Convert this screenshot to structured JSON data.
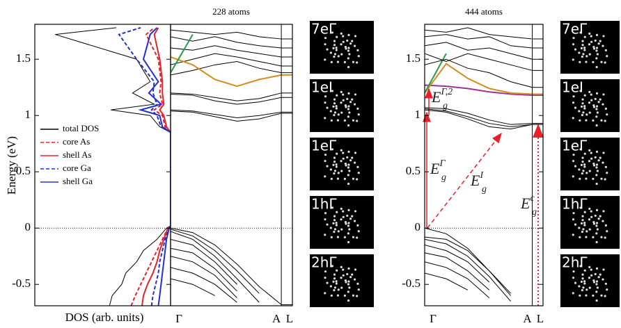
{
  "chart_data": [
    {
      "type": "line",
      "orientation": "horizontal",
      "xlabel": "DOS (arb. units)",
      "ylabel": "Energy (eV)",
      "xlim": [
        10,
        0
      ],
      "ylim": [
        -0.69,
        1.81
      ],
      "yticks": [
        -0.5,
        0,
        0.5,
        1,
        1.5
      ],
      "zero_line": true,
      "legend": "center left",
      "energy": [
        -0.69,
        -0.6,
        -0.5,
        -0.4,
        -0.3,
        -0.2,
        -0.1,
        0,
        0.02,
        0.85,
        0.9,
        1.0,
        1.05,
        1.1,
        1.2,
        1.3,
        1.5,
        1.72,
        1.78
      ],
      "series": [
        {
          "name": "total DOS",
          "color": "#000000",
          "style": "solid",
          "values": [
            4.5,
            4.3,
            3.6,
            3.3,
            2.5,
            2.0,
            1.0,
            0.3,
            0,
            0,
            0.8,
            1.5,
            4.4,
            1.2,
            2.8,
            1.5,
            2.5,
            8.5,
            4
          ]
        },
        {
          "name": "core As",
          "color": "#e8202a",
          "style": "dashed",
          "values": [
            2.9,
            2.6,
            2.2,
            1.8,
            1.4,
            1.0,
            0.6,
            0.2,
            0,
            0,
            0.4,
            0.6,
            1.2,
            0.6,
            0.8,
            0.7,
            0.9,
            1.8,
            1.2
          ]
        },
        {
          "name": "shell As",
          "color": "#e8202a",
          "style": "solid",
          "values": [
            2.1,
            2.0,
            1.7,
            1.3,
            1.0,
            0.8,
            0.5,
            0.2,
            0,
            0,
            0.3,
            0.5,
            0.8,
            0.5,
            0.6,
            0.6,
            0.8,
            1.2,
            0.9
          ]
        },
        {
          "name": "core Ga",
          "color": "#2030d0",
          "style": "dashed",
          "values": [
            1.4,
            1.3,
            1.1,
            0.9,
            0.8,
            0.6,
            0.4,
            0.1,
            0,
            0,
            0.7,
            1.0,
            1.4,
            1.0,
            1.3,
            1.2,
            2.5,
            3.8,
            2.2
          ]
        },
        {
          "name": "shell Ga",
          "color": "#2030d0",
          "style": "solid",
          "values": [
            0.9,
            0.8,
            0.7,
            0.6,
            0.5,
            0.4,
            0.3,
            0.1,
            0,
            0,
            0.6,
            0.8,
            2.2,
            0.7,
            1.6,
            0.9,
            2.0,
            1.5,
            1.0
          ]
        }
      ]
    },
    {
      "type": "line",
      "title": "228 atoms",
      "xlim": [
        0,
        1.1
      ],
      "ylim": [
        -0.69,
        1.81
      ],
      "zero_line": true,
      "xticks": [
        {
          "value": 0,
          "label": "Γ"
        },
        {
          "value": 1,
          "label": "A"
        },
        {
          "value": 1.1,
          "label": "L"
        }
      ],
      "x": [
        0,
        0.2,
        0.4,
        0.6,
        0.8,
        1,
        1.1
      ],
      "insets": [
        "7eΓ",
        "1eI",
        "1eΓ",
        "1hΓ",
        "2hΓ"
      ],
      "series": [
        {
          "color": "#000000",
          "values": [
            1.04,
            1.03,
            0.99,
            0.95,
            0.97,
            1.02,
            1.02
          ]
        },
        {
          "color": "#000000",
          "values": [
            1.05,
            1.04,
            1.01,
            0.98,
            1.0,
            1.03,
            1.03
          ]
        },
        {
          "color": "#000000",
          "values": [
            1.19,
            1.18,
            1.13,
            1.1,
            1.12,
            1.16,
            1.16
          ]
        },
        {
          "color": "#000000",
          "values": [
            1.2,
            1.19,
            1.16,
            1.13,
            1.15,
            1.2,
            1.2
          ]
        },
        {
          "color": "#000000",
          "values": [
            1.36,
            1.4,
            1.45,
            1.48,
            1.42,
            1.38,
            1.38
          ]
        },
        {
          "color": "#000000",
          "values": [
            1.45,
            1.5,
            1.55,
            1.52,
            1.48,
            1.44,
            1.44
          ]
        },
        {
          "color": "#000000",
          "values": [
            1.6,
            1.58,
            1.62,
            1.58,
            1.55,
            1.52,
            1.52
          ]
        },
        {
          "color": "#000000",
          "values": [
            1.7,
            1.66,
            1.7,
            1.65,
            1.62,
            1.6,
            1.6
          ]
        },
        {
          "color": "#000000",
          "values": [
            1.76,
            1.74,
            1.72,
            1.74,
            1.7,
            1.68,
            1.68
          ]
        },
        {
          "color": "#d98a1c",
          "values": [
            1.52,
            1.45,
            1.32,
            1.26,
            1.32,
            1.36,
            1.36
          ]
        },
        {
          "color": "#2a9a4a",
          "values": [
            1.38,
            1.72,
            null,
            null,
            null,
            null,
            null
          ]
        },
        {
          "color": "#000000",
          "values": [
            0,
            -0.04,
            -0.15,
            -0.32,
            -0.52,
            -0.68,
            -0.68
          ]
        },
        {
          "color": "#000000",
          "values": [
            -0.01,
            -0.07,
            -0.2,
            -0.38,
            -0.58,
            null,
            null
          ]
        },
        {
          "color": "#000000",
          "values": [
            -0.03,
            -0.1,
            -0.25,
            -0.45,
            -0.66,
            null,
            null
          ]
        },
        {
          "color": "#000000",
          "values": [
            -0.1,
            -0.15,
            -0.3,
            -0.5,
            null,
            null,
            null
          ]
        },
        {
          "color": "#000000",
          "values": [
            -0.18,
            -0.22,
            -0.36,
            -0.56,
            null,
            null,
            null
          ]
        },
        {
          "color": "#000000",
          "values": [
            -0.25,
            -0.3,
            -0.42,
            -0.62,
            null,
            null,
            null
          ]
        },
        {
          "color": "#000000",
          "values": [
            -0.35,
            -0.4,
            -0.5,
            -0.66,
            null,
            null,
            null
          ]
        },
        {
          "color": "#000000",
          "values": [
            -0.45,
            -0.5,
            -0.6,
            null,
            null,
            null,
            null
          ]
        }
      ]
    },
    {
      "type": "line",
      "title": "444 atoms",
      "xlim": [
        0,
        1.1
      ],
      "ylim": [
        -0.69,
        1.81
      ],
      "zero_line": true,
      "yticks": [
        -0.5,
        0,
        0.5,
        1,
        1.5
      ],
      "xticks": [
        {
          "value": 0,
          "label": "Γ"
        },
        {
          "value": 1,
          "label": "A"
        },
        {
          "value": 1.1,
          "label": "L"
        }
      ],
      "x": [
        0,
        0.2,
        0.4,
        0.6,
        0.8,
        1,
        1.1
      ],
      "insets": [
        "7eΓ",
        "1eI",
        "1eΓ",
        "1hΓ",
        "2hΓ"
      ],
      "annotations": [
        {
          "base": "E",
          "sub": "g",
          "sup": "Γ,2"
        },
        {
          "base": "E",
          "sub": "g",
          "sup": "Γ"
        },
        {
          "base": "E",
          "sub": "g",
          "sup": "I"
        },
        {
          "base": "E",
          "sub": "g",
          "sup": "c"
        }
      ],
      "series": [
        {
          "color": "#000000",
          "values": [
            1.05,
            1.03,
            0.97,
            0.9,
            0.88,
            0.92,
            0.92
          ]
        },
        {
          "color": "#000000",
          "values": [
            1.06,
            1.04,
            0.99,
            0.93,
            0.9,
            0.92,
            0.92
          ]
        },
        {
          "color": "#000000",
          "values": [
            1.07,
            1.06,
            1.02,
            0.96,
            0.92,
            0.93,
            0.93
          ]
        },
        {
          "color": "#a0309a",
          "values": [
            1.27,
            1.26,
            1.24,
            1.21,
            1.19,
            1.18,
            1.18
          ]
        },
        {
          "color": "#d98a1c",
          "values": [
            1.2,
            1.46,
            1.33,
            1.24,
            1.2,
            1.19,
            1.19
          ]
        },
        {
          "color": "#2a9a4a",
          "values": [
            1.2,
            1.55,
            null,
            null,
            null,
            null,
            null
          ]
        },
        {
          "color": "#000000",
          "values": [
            1.45,
            1.5,
            1.42,
            1.38,
            1.3,
            1.25,
            1.25
          ]
        },
        {
          "color": "#000000",
          "values": [
            1.55,
            1.48,
            1.55,
            1.5,
            1.45,
            1.4,
            1.4
          ]
        },
        {
          "color": "#000000",
          "values": [
            1.62,
            1.65,
            1.58,
            1.6,
            1.55,
            1.5,
            1.5
          ]
        },
        {
          "color": "#000000",
          "values": [
            1.7,
            1.72,
            1.68,
            1.7,
            1.62,
            1.6,
            1.6
          ]
        },
        {
          "color": "#000000",
          "values": [
            1.76,
            1.74,
            1.78,
            1.72,
            1.7,
            1.68,
            1.68
          ]
        },
        {
          "color": "#000000",
          "values": [
            0,
            -0.05,
            -0.18,
            -0.38,
            -0.6,
            null,
            null
          ]
        },
        {
          "color": "#000000",
          "values": [
            -0.08,
            -0.1,
            -0.2,
            -0.38,
            -0.58,
            null,
            null
          ]
        },
        {
          "color": "#000000",
          "values": [
            -0.1,
            -0.14,
            -0.25,
            -0.43,
            -0.65,
            null,
            null
          ]
        },
        {
          "color": "#000000",
          "values": [
            -0.15,
            -0.2,
            -0.3,
            -0.48,
            null,
            null,
            null
          ]
        },
        {
          "color": "#000000",
          "values": [
            -0.22,
            -0.26,
            -0.38,
            -0.55,
            null,
            null,
            null
          ]
        },
        {
          "color": "#000000",
          "values": [
            -0.3,
            -0.35,
            -0.45,
            -0.62,
            null,
            null,
            null
          ]
        },
        {
          "color": "#000000",
          "values": [
            -0.4,
            -0.45,
            -0.55,
            null,
            null,
            null,
            null
          ]
        }
      ]
    }
  ]
}
